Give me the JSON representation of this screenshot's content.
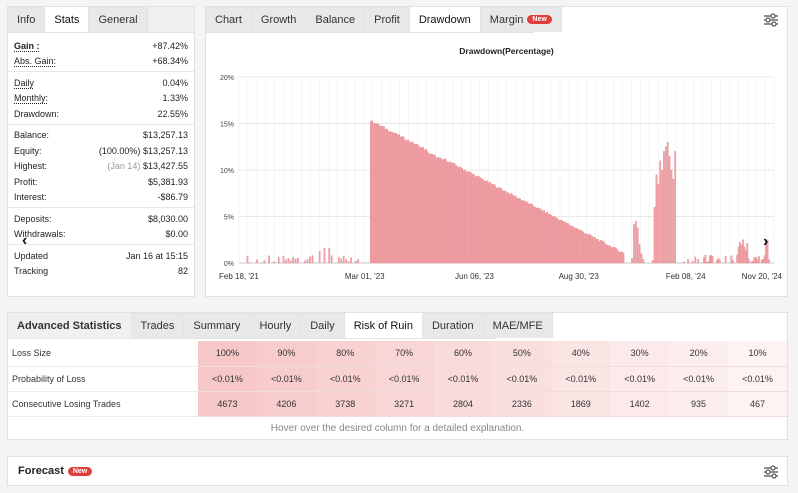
{
  "left": {
    "tabs": [
      {
        "label": "Info"
      },
      {
        "label": "Stats"
      },
      {
        "label": "General"
      }
    ],
    "rows": [
      {
        "k": "Gain :",
        "v": "+87.42%"
      },
      {
        "k": "Abs. Gain:",
        "v": "+68.34%"
      },
      {
        "k": "Daily",
        "v": "0.04%"
      },
      {
        "k": "Monthly:",
        "v": "1.33%"
      },
      {
        "k": "Drawdown:",
        "v": "22.55%"
      },
      {
        "k": "Balance:",
        "v": "$13,257.13"
      },
      {
        "k": "Equity:",
        "v_note": "(100.00%)",
        "v": "$13,257.13"
      },
      {
        "k": "Highest:",
        "v_note": "(Jan 14)",
        "v": "$13,427.55"
      },
      {
        "k": "Profit:",
        "v": "$5,381.93"
      },
      {
        "k": "Interest:",
        "v": "-$86.79"
      },
      {
        "k": "Deposits:",
        "v": "$8,030.00"
      },
      {
        "k": "Withdrawals:",
        "v": "$0.00"
      },
      {
        "k": "Updated",
        "v": "Jan 16 at 15:15"
      },
      {
        "k": "Tracking",
        "v": "82"
      }
    ]
  },
  "chart_tabs": [
    {
      "label": "Chart"
    },
    {
      "label": "Growth"
    },
    {
      "label": "Balance"
    },
    {
      "label": "Profit"
    },
    {
      "label": "Drawdown"
    },
    {
      "label": "Margin"
    }
  ],
  "margin_badge": "New",
  "chart_data": {
    "type": "bar",
    "title": "Drawdown(Percentage)",
    "xlabel": "",
    "ylabel": "",
    "ylim": [
      0,
      20
    ],
    "yticks": [
      "0%",
      "5%",
      "10%",
      "15%",
      "20%"
    ],
    "xticks": [
      "Feb 18, '21",
      "Mar 01, '23",
      "Jun 06, '23",
      "Aug 30, '23",
      "Feb 08, '24",
      "Nov 20, '24"
    ],
    "grid": true,
    "color": "#f0a0a4",
    "segments": [
      {
        "from": "Feb 18, '21",
        "to": "Mar 01, '23",
        "approx_values": "0% to 1.5%, mostly near 0.5%"
      },
      {
        "from": "Mar 01, '23",
        "to": "Aug 30, '23",
        "approx_values": "declining from 15.3% to about 1%"
      },
      {
        "from": "Aug 30, '23",
        "to": "Feb 08, '24",
        "approx_values": "rising to 13% peak"
      },
      {
        "from": "Feb 08, '24",
        "to": "Nov 20, '24",
        "approx_values": "0% to 2.5%"
      }
    ]
  },
  "adv": {
    "tabs": [
      {
        "label": "Advanced Statistics"
      },
      {
        "label": "Trades"
      },
      {
        "label": "Summary"
      },
      {
        "label": "Hourly"
      },
      {
        "label": "Daily"
      },
      {
        "label": "Risk of Ruin"
      },
      {
        "label": "Duration"
      },
      {
        "label": "MAE/MFE"
      }
    ],
    "rows": [
      {
        "label": "Loss Size",
        "cells": [
          "100%",
          "90%",
          "80%",
          "70%",
          "60%",
          "50%",
          "40%",
          "30%",
          "20%",
          "10%"
        ]
      },
      {
        "label": "Probability of Loss",
        "cells": [
          "<0.01%",
          "<0.01%",
          "<0.01%",
          "<0.01%",
          "<0.01%",
          "<0.01%",
          "<0.01%",
          "<0.01%",
          "<0.01%",
          "<0.01%"
        ]
      },
      {
        "label": "Consecutive Losing Trades",
        "cells": [
          "4673",
          "4206",
          "3738",
          "3271",
          "2804",
          "2336",
          "1869",
          "1402",
          "935",
          "467"
        ]
      }
    ],
    "cell_colors": [
      "#f6c7c7",
      "#f7cccc",
      "#f8d1d1",
      "#f9d6d6",
      "#f9dbdb",
      "#fadfdf",
      "#fbe4e4",
      "#fce9e9",
      "#fdeeee",
      "#fef3f3"
    ],
    "hint": "Hover over the desired column for a detailed explanation."
  },
  "forecast": {
    "title": "Forecast",
    "badge": "New"
  },
  "icons": {
    "settings": "sliders-icon",
    "next": "chevron-right-icon",
    "prev": "chevron-left-icon"
  }
}
